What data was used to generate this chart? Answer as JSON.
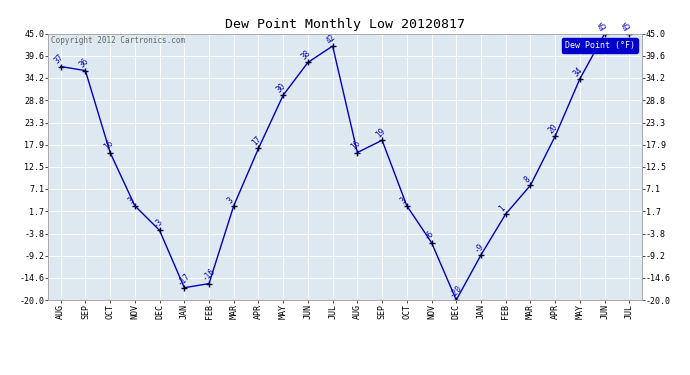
{
  "title": "Dew Point Monthly Low 20120817",
  "copyright": "Copyright 2012 Cartronics.com",
  "legend_label": "Dew Point (°F)",
  "months": [
    "AUG",
    "SEP",
    "OCT",
    "NOV",
    "DEC",
    "JAN",
    "FEB",
    "MAR",
    "APR",
    "MAY",
    "JUN",
    "JUL",
    "AUG",
    "SEP",
    "OCT",
    "NOV",
    "DEC",
    "JAN",
    "FEB",
    "MAR",
    "APR",
    "MAY",
    "JUN",
    "JUL"
  ],
  "values": [
    37,
    36,
    16,
    3,
    -3,
    -17,
    -16,
    3,
    17,
    30,
    38,
    42,
    16,
    19,
    3,
    -6,
    -20,
    -9,
    1,
    8,
    20,
    34,
    45,
    45
  ],
  "ylim": [
    -20.0,
    45.0
  ],
  "yticks": [
    45.0,
    39.6,
    34.2,
    28.8,
    23.3,
    17.9,
    12.5,
    7.1,
    1.7,
    -3.8,
    -9.2,
    -14.6,
    -20.0
  ],
  "line_color": "#0000bb",
  "marker_color": "#000033",
  "bg_color": "#dde8f0",
  "grid_color": "#ffffff",
  "outer_bg": "#ffffff",
  "title_color": "#000000",
  "label_color": "#0000bb",
  "legend_bg": "#0000cc",
  "legend_text_color": "#ffffff",
  "copyright_color": "#666666",
  "title_fontsize": 9.5,
  "tick_fontsize": 6,
  "label_fontsize": 5.5
}
